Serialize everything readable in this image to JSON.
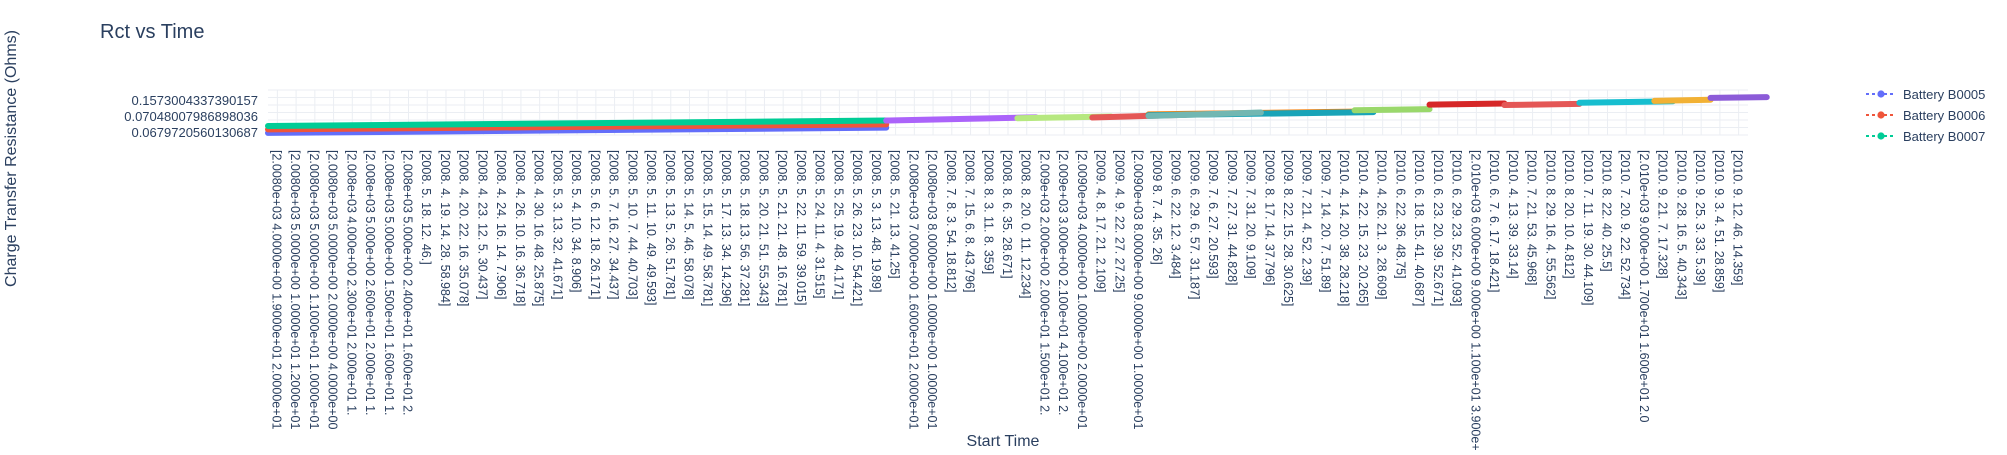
{
  "chart_data": {
    "type": "line",
    "title": "Rct vs Time",
    "xlabel": "Start Time",
    "ylabel": "Charge Transfer Resistance (Ohms)",
    "y_ticks": [
      "0.0679720560130687",
      "0.07048007986898036",
      "0.1573004337390157"
    ],
    "x_ticks": [
      "[2.0080e+03 4.0000e+00 1.9000e+01 2.0000e+01",
      "[2.0080e+03 5.0000e+00 1.0000e+01 1.2000e+01",
      "[2.0080e+03 5.0000e+00 1.1000e+01 1.0000e+01",
      "[2.0080e+03 5.0000e+00 2.0000e+00 4.0000e+00",
      "[2.008e+03 4.000e+00 2.300e+01 2.000e+01 1.",
      "[2.008e+03 5.000e+00 2.600e+01 2.000e+01 1.",
      "[2.008e+03 5.000e+00 1.500e+01 1.600e+01 1.",
      "[2.008e+03 5.000e+00 2.400e+01 1.600e+01 2.",
      "[2008.  5. 18. 12. 46.]",
      "[2008.  4. 19. 14. 28. 58.984]",
      "[2008.  4. 20. 22. 16. 35.078]",
      "[2008.  4. 23. 12. 5. 30.437]",
      "[2008.  4. 24. 16. 14. 7.906]",
      "[2008.  4. 26. 10. 16. 36.718]",
      "[2008.  4. 30. 16. 48. 25.875]",
      "[2008.  5. 3. 13. 32. 41.671]",
      "[2008.  5. 4. 10. 34. 8.906]",
      "[2008.  5. 6. 12. 18. 26.171]",
      "[2008.  5. 7. 16. 27. 34.437]",
      "[2008.  5. 10. 7. 44. 40.703]",
      "[2008.  5. 11. 10. 49. 49.593]",
      "[2008.  5. 13. 5. 26. 51.781]",
      "[2008.  5. 14. 5. 46. 58.078]",
      "[2008.  5. 15. 14. 49. 58.781]",
      "[2008.  5. 17. 13. 34. 14.296]",
      "[2008.  5. 18. 13. 56. 37.281]",
      "[2008.  5. 20. 21. 51. 55.343]",
      "[2008.  5. 21. 21. 48. 16.781]",
      "[2008.  5. 22. 11. 59. 39.015]",
      "[2008.  5. 24. 11. 4. 31.515]",
      "[2008.  5. 25. 19. 48. 4.171]",
      "[2008.  5. 26. 23. 10. 54.421]",
      "[2008.  5. 3. 13. 48. 19.89]",
      "[2008.  5. 21. 13. 41.25]",
      "[2.0080e+03 7.0000e+00 1.6000e+01 2.0000e+01",
      "[2.0080e+03 8.0000e+00 1.0000e+00 1.0000e+01",
      "[2008.  7. 8. 3. 54. 18.812]",
      "[2008.  7. 15. 6. 8. 43.796]",
      "[2008.  8. 3. 11. 8. 359]",
      "[2008.  8. 6. 35. 28.671]",
      "[2008.  8. 20. 0. 11. 12.234]",
      "[2.009e+03 2.000e+00 2.000e+01 1.500e+01 2.",
      "[2.009e+03 3.000e+00 2.100e+01 4.100e+01 2.",
      "[2.0090e+03 4.0000e+00 1.0000e+00 2.0000e+01",
      "[2009.  4. 8. 17. 21. 2.109]",
      "[2009.  4. 9. 22. 27. 27.25]",
      "[2.0090e+03 8.0000e+00 9.0000e+00 1.0000e+01",
      "[2009  8. 7. 4. 35. 26]",
      "[2009.  6. 22. 12. 3.484]",
      "[2009.  6. 29. 6. 57. 31.187]",
      "[2009.  7. 6. 27. 20.593]",
      "[2009.  7. 27. 31. 44.828]",
      "[2009.  7. 31. 20. 9.109]",
      "[2009.  8. 17. 14. 37.796]",
      "[2009.  8. 22. 15. 28. 30.625]",
      "[2009.  7. 21. 4. 52. 2.39]",
      "[2009.  7. 14. 20. 7. 51.89]",
      "[2010.  4. 14. 20. 38. 28.218]",
      "[2010.  4. 22. 15. 23. 20.265]",
      "[2010.  4. 26. 21. 3. 28.609]",
      "[2010.  6. 22. 36. 48.75]",
      "[2010.  6. 18. 15. 41. 40.687]",
      "[2010.  6. 23. 20. 39. 52.671]",
      "[2010.  6. 29. 23. 52. 41.093]",
      "[2.010e+03 6.000e+00 9.000e+00 1.100e+01 3.900e+01",
      "[2010.  6. 7. 6. 17. 18.421]",
      "[2010.  4. 13. 39. 33.14]",
      "[2010.  7. 21. 53. 45.968]",
      "[2010.  8. 29. 16. 4. 55.562]",
      "[2010.  8. 20. 10. 4.812]",
      "[2010.  7. 11. 19. 30. 44.109]",
      "[2010.  8. 22. 40. 25.5]",
      "[2010.  7. 20. 9. 22. 52.734]",
      "[2.010e+03 9.000e+00 1.700e+01 1.600e+01 2.0",
      "[2010.  9. 21. 7. 17.328]",
      "[2010.  9. 28. 16. 5. 40.343]",
      "[2010.  9. 25. 3. 33. 5.39]",
      "[2010.  9. 3. 4. 51. 28.859]",
      "[2010.  9. 12. 46. 14.359]"
    ],
    "series_visible": [
      {
        "name": "Battery B0005",
        "color": "#636efa"
      },
      {
        "name": "Battery B0006",
        "color": "#ef553b"
      },
      {
        "name": "Battery B0007",
        "color": "#00cc96"
      }
    ],
    "series": [
      {
        "name": "Battery B0005",
        "color": "#636efa",
        "y": [
          0.0608,
          0.0748
        ]
      },
      {
        "name": "Battery B0006",
        "color": "#ef553b",
        "y": [
          0.0702,
          0.0836
        ]
      },
      {
        "name": "Battery B0007",
        "color": "#00cc96",
        "y": [
          0.0793,
          0.0938
        ]
      },
      {
        "color": "#ab63fa",
        "y": [
          0.0938,
          0.1023
        ]
      },
      {
        "color": "#b6e880",
        "y": [
          0.1,
          0.1045
        ]
      },
      {
        "color": "#e45756",
        "y": [
          0.1018,
          0.109
        ]
      },
      {
        "color": "#f58518",
        "y": [
          0.11,
          0.118
        ]
      },
      {
        "color": "#19a4b8",
        "y": [
          0.108,
          0.116
        ]
      },
      {
        "color": "#72b7b2",
        "y": [
          0.106,
          0.115
        ]
      },
      {
        "color": "#9ad86b",
        "y": [
          0.121,
          0.124
        ]
      },
      {
        "color": "#d62728",
        "y": [
          0.136,
          0.139
        ]
      },
      {
        "color": "#e45756",
        "y": [
          0.135,
          0.138
        ]
      },
      {
        "color": "#17becf",
        "y": [
          0.141,
          0.145
        ]
      },
      {
        "color": "#f2b134",
        "y": [
          0.146,
          0.149
        ]
      },
      {
        "color": "#8c5bd8",
        "y": [
          0.154,
          0.156
        ]
      }
    ],
    "ylim": [
      0.0553,
      0.175
    ],
    "grid": true,
    "legend_position": "right"
  }
}
